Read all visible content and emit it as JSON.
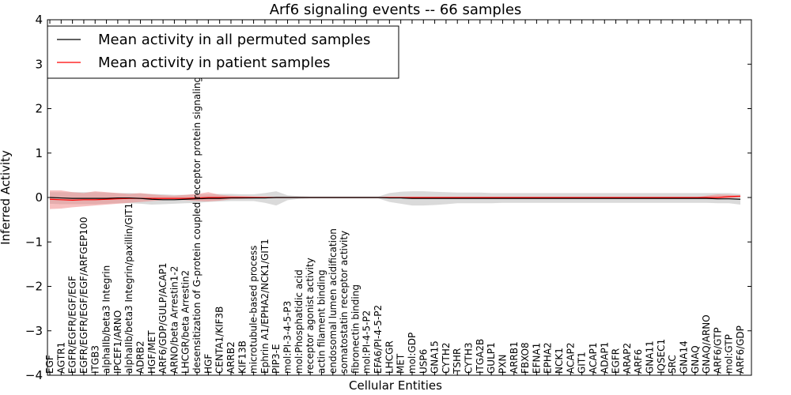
{
  "chart_data": {
    "type": "line",
    "title": "Arf6 signaling events -- 66 samples",
    "xlabel": "Cellular Entities",
    "ylabel": "Inferred Activity",
    "ylim": [
      -4,
      4
    ],
    "yticks": [
      -4,
      -3,
      -2,
      -1,
      0,
      1,
      2,
      3,
      4
    ],
    "ytick_labels": [
      "−4",
      "−3",
      "−2",
      "−1",
      "0",
      "1",
      "2",
      "3",
      "4"
    ],
    "grid": false,
    "legend_position": "top-left",
    "categories": [
      "EGF",
      "AGTR1",
      "EGFR/EGFR/EGF/EGF",
      "EGFR/EGFR/EGF/EGF/ARFGEP100",
      "ITGB3",
      "alphaIIb/beta3 Integrin",
      "IPCEF1/ARNO",
      "alphaIIb/beta3 Integrin/paxillin/GIT1",
      "ADRB2",
      "HGF/MET",
      "ARF6/GDP/GULP/ACAP1",
      "ARNO/beta Arrestin1-2",
      "LHCGR/beta Arrestin2",
      "desensitization of G-protein coupled receptor protein signaling pathway",
      "HGF",
      "CENTA1/KIF3B",
      "ARRB2",
      "KIF13B",
      "microtubule-based process",
      "Ephrin A1/EPHA2/NCK1/GIT1",
      "PIP3-E",
      "mol:PI-3-4-5-P3",
      "mol:Phosphatidic acid",
      "receptor agonist activity",
      "actin filament binding",
      "endosomal lumen acidification",
      "somatostatin receptor activity",
      "fibronectin binding",
      "mol:PI-4-5-P2",
      "EFA6/PI-4-5-P2",
      "LHCGR",
      "MET",
      "mol:GDP",
      "USP6",
      "GNA15",
      "CYTH2",
      "TSHR",
      "CYTH3",
      "ITGA2B",
      "GULP1",
      "PXN",
      "ARRB1",
      "FBXO8",
      "EFNA1",
      "EPHA2",
      "NCK1",
      "ACAP2",
      "GIT1",
      "ACAP1",
      "ADAP1",
      "EGFR",
      "ARAP2",
      "ARF6",
      "GNA11",
      "IQSEC1",
      "SRC",
      "GNA14",
      "GNAQ",
      "GNAQ/ARNO",
      "ARF6/GTP",
      "mol:GTP",
      "ARF6/GDP"
    ],
    "series": [
      {
        "name": "Mean activity in all permuted samples",
        "color": "#000000",
        "values": [
          0.0,
          -0.01,
          -0.02,
          -0.02,
          -0.02,
          -0.02,
          -0.01,
          -0.01,
          -0.02,
          -0.04,
          -0.05,
          -0.05,
          -0.04,
          -0.03,
          -0.02,
          -0.02,
          -0.01,
          -0.01,
          -0.01,
          -0.01,
          0.0,
          0.0,
          0.0,
          0.0,
          0.0,
          0.0,
          0.0,
          0.0,
          0.0,
          0.0,
          -0.01,
          -0.01,
          -0.02,
          -0.02,
          -0.02,
          -0.02,
          -0.02,
          -0.02,
          -0.02,
          -0.02,
          -0.02,
          -0.02,
          -0.02,
          -0.02,
          -0.02,
          -0.02,
          -0.02,
          -0.02,
          -0.02,
          -0.02,
          -0.02,
          -0.02,
          -0.02,
          -0.02,
          -0.02,
          -0.02,
          -0.02,
          -0.02,
          -0.02,
          -0.03,
          -0.03,
          -0.04
        ],
        "band_color": "#bbbbbb",
        "band_lower": [
          -0.14,
          -0.15,
          -0.15,
          -0.15,
          -0.15,
          -0.14,
          -0.13,
          -0.13,
          -0.14,
          -0.16,
          -0.15,
          -0.14,
          -0.13,
          -0.12,
          -0.1,
          -0.09,
          -0.08,
          -0.08,
          -0.08,
          -0.12,
          -0.18,
          -0.06,
          -0.03,
          -0.02,
          -0.02,
          -0.02,
          -0.02,
          -0.02,
          -0.02,
          -0.02,
          -0.1,
          -0.14,
          -0.18,
          -0.18,
          -0.17,
          -0.15,
          -0.13,
          -0.13,
          -0.13,
          -0.13,
          -0.12,
          -0.12,
          -0.12,
          -0.12,
          -0.12,
          -0.12,
          -0.12,
          -0.12,
          -0.12,
          -0.12,
          -0.12,
          -0.12,
          -0.12,
          -0.12,
          -0.12,
          -0.12,
          -0.12,
          -0.12,
          -0.12,
          -0.13,
          -0.13,
          -0.16
        ],
        "band_upper": [
          0.12,
          0.12,
          0.12,
          0.12,
          0.12,
          0.11,
          0.1,
          0.1,
          0.09,
          0.08,
          0.07,
          0.06,
          0.06,
          0.07,
          0.07,
          0.08,
          0.08,
          0.07,
          0.07,
          0.1,
          0.14,
          0.05,
          0.03,
          0.02,
          0.02,
          0.02,
          0.02,
          0.02,
          0.02,
          0.02,
          0.1,
          0.13,
          0.14,
          0.14,
          0.13,
          0.12,
          0.11,
          0.11,
          0.11,
          0.1,
          0.1,
          0.1,
          0.1,
          0.1,
          0.1,
          0.1,
          0.1,
          0.1,
          0.1,
          0.1,
          0.1,
          0.1,
          0.1,
          0.1,
          0.1,
          0.1,
          0.1,
          0.1,
          0.1,
          0.1,
          0.1,
          0.08
        ]
      },
      {
        "name": "Mean activity in patient samples",
        "color": "#ff0000",
        "values": [
          -0.04,
          -0.05,
          -0.06,
          -0.05,
          -0.05,
          -0.04,
          -0.03,
          -0.02,
          -0.02,
          -0.02,
          -0.02,
          -0.02,
          -0.02,
          -0.01,
          0.0,
          0.0,
          0.0,
          0.0,
          0.0,
          0.0,
          0.0,
          0.0,
          0.0,
          0.0,
          0.0,
          0.0,
          0.0,
          0.0,
          0.0,
          0.0,
          0.0,
          0.0,
          0.0,
          0.0,
          0.0,
          0.0,
          0.0,
          0.0,
          0.0,
          0.0,
          0.0,
          0.0,
          0.0,
          0.0,
          0.0,
          0.0,
          0.0,
          0.0,
          0.0,
          0.0,
          0.0,
          0.0,
          0.0,
          0.0,
          0.0,
          0.0,
          0.0,
          0.0,
          0.0,
          0.0,
          0.02,
          0.03
        ],
        "band_color": "#f08080",
        "band_lower": [
          -0.26,
          -0.25,
          -0.22,
          -0.2,
          -0.18,
          -0.16,
          -0.14,
          -0.12,
          -0.1,
          -0.08,
          -0.06,
          -0.05,
          -0.06,
          -0.08,
          -0.09,
          -0.07,
          -0.04,
          -0.03,
          -0.02,
          -0.01,
          -0.01,
          0.0,
          0.0,
          0.0,
          0.0,
          0.0,
          0.0,
          0.0,
          0.0,
          0.0,
          0.0,
          0.0,
          0.0,
          0.0,
          0.0,
          0.0,
          0.0,
          0.0,
          0.0,
          0.0,
          0.0,
          0.0,
          0.0,
          0.0,
          0.0,
          0.0,
          0.0,
          0.0,
          0.0,
          0.0,
          0.0,
          0.0,
          0.0,
          0.0,
          0.0,
          0.0,
          0.0,
          0.0,
          -0.02,
          -0.04,
          -0.02,
          0.0
        ],
        "band_upper": [
          0.16,
          0.16,
          0.12,
          0.1,
          0.14,
          0.12,
          0.1,
          0.08,
          0.1,
          0.07,
          0.05,
          0.04,
          0.06,
          0.08,
          0.12,
          0.06,
          0.04,
          0.03,
          0.02,
          0.01,
          0.01,
          0.0,
          0.0,
          0.0,
          0.0,
          0.0,
          0.0,
          0.0,
          0.0,
          0.0,
          0.0,
          0.0,
          0.0,
          0.0,
          0.0,
          0.0,
          0.0,
          0.0,
          0.0,
          0.0,
          0.0,
          0.0,
          0.0,
          0.0,
          0.0,
          0.0,
          0.0,
          0.0,
          0.0,
          0.0,
          0.0,
          0.0,
          0.0,
          0.0,
          0.0,
          0.0,
          0.0,
          0.0,
          0.04,
          0.07,
          0.06,
          0.05
        ]
      }
    ]
  }
}
